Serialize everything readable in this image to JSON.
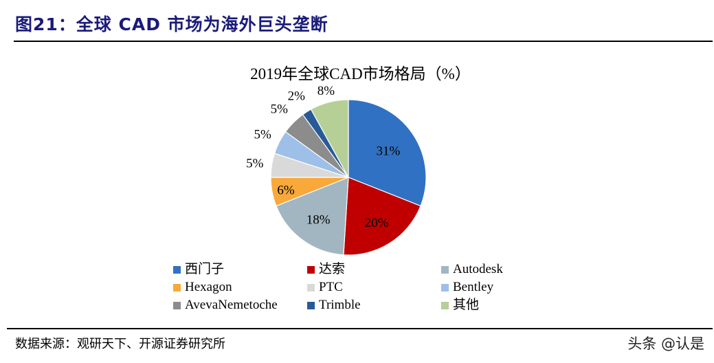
{
  "figure_title": "图21：全球 CAD 市场为海外巨头垄断",
  "chart_data": {
    "type": "pie",
    "title": "2019年全球CAD市场格局（%）",
    "unit": "%",
    "start": "top",
    "direction": "clockwise",
    "legend_position": "bottom",
    "slices": [
      {
        "label": "西门子",
        "value": 31,
        "display": "31%",
        "color": "#3171C3"
      },
      {
        "label": "达索",
        "value": 20,
        "display": "20%",
        "color": "#C00000"
      },
      {
        "label": "Autodesk",
        "value": 18,
        "display": "18%",
        "color": "#A2B6C2"
      },
      {
        "label": "Hexagon",
        "value": 6,
        "display": "6%",
        "color": "#F9A83A"
      },
      {
        "label": "PTC",
        "value": 5,
        "display": "5%",
        "color": "#D9D9D9"
      },
      {
        "label": "Bentley",
        "value": 5,
        "display": "5%",
        "color": "#9DBFE8"
      },
      {
        "label": "AvevaNemetoche",
        "value": 5,
        "display": "5%",
        "color": "#8C8C8C"
      },
      {
        "label": "Trimble",
        "value": 2,
        "display": "2%",
        "color": "#285A98"
      },
      {
        "label": "其他",
        "value": 8,
        "display": "8%",
        "color": "#B6CF96"
      }
    ]
  },
  "source": "数据来源：观研天下、开源证券研究所",
  "watermark": "头条 @认是"
}
